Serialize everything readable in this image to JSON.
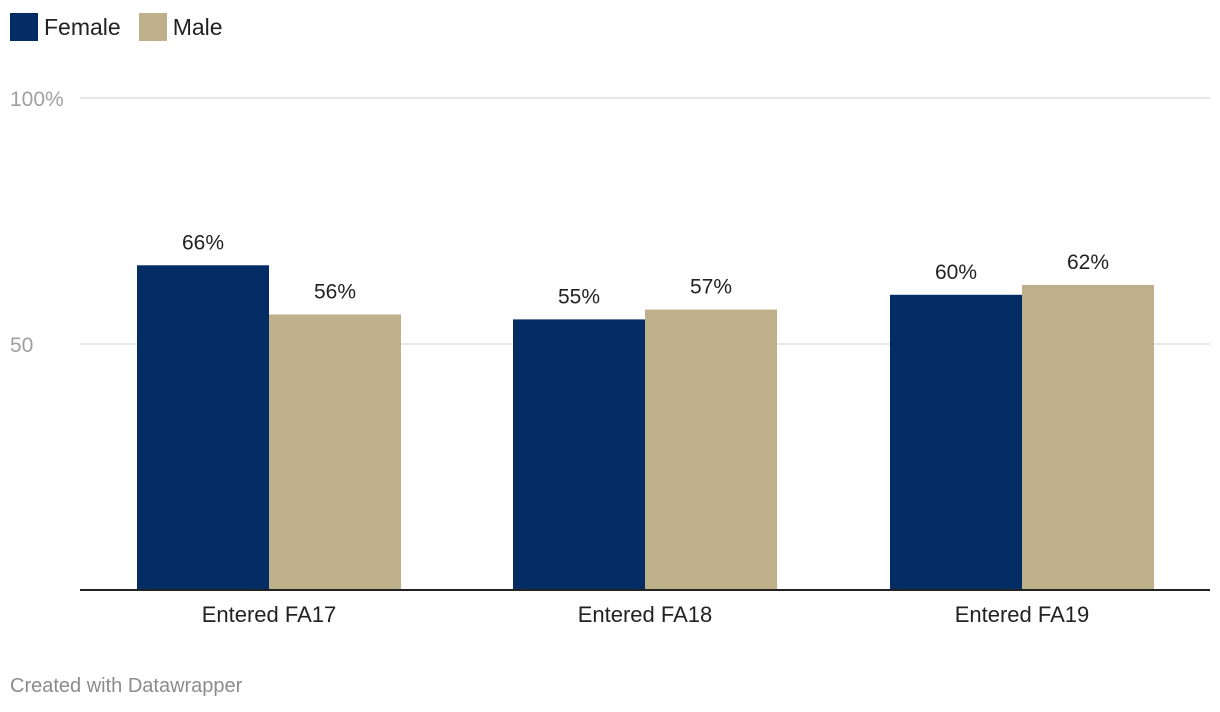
{
  "chart_data": {
    "type": "bar",
    "categories": [
      "Entered FA17",
      "Entered FA18",
      "Entered FA19"
    ],
    "series": [
      {
        "name": "Female",
        "color": "#032d64",
        "values": [
          66,
          55,
          60
        ],
        "labels": [
          "66%",
          "55%",
          "60%"
        ]
      },
      {
        "name": "Male",
        "color": "#bfb08c",
        "values": [
          56,
          57,
          62
        ],
        "labels": [
          "56%",
          "57%",
          "62%"
        ]
      }
    ],
    "ylim": [
      0,
      100
    ],
    "yticks": [
      {
        "value": 100,
        "label": "100%"
      },
      {
        "value": 50,
        "label": "50"
      }
    ],
    "grid": true,
    "legend_position": "top-left"
  },
  "footer": {
    "credit": "Created with Datawrapper"
  }
}
